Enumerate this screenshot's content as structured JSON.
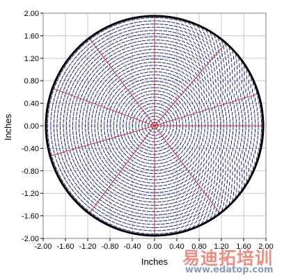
{
  "chart_data": {
    "type": "scatter",
    "title": "",
    "xlabel": "Inches",
    "ylabel": "Inches",
    "xlim": [
      -2.0,
      2.0
    ],
    "ylim": [
      -2.0,
      2.0
    ],
    "x_ticks": [
      "-2.00",
      "-1.60",
      "-1.20",
      "-0.80",
      "-0.40",
      "0.00",
      "0.40",
      "0.80",
      "1.20",
      "1.60",
      "2.00"
    ],
    "y_ticks": [
      "2.00",
      "1.60",
      "1.20",
      "0.80",
      "0.40",
      "0.00",
      "-0.40",
      "-0.80",
      "-1.20",
      "-1.60",
      "-2.00"
    ],
    "grid": true,
    "boundary_circle": {
      "center": [
        0.0,
        0.0
      ],
      "radius": 1.95,
      "color": "#000000"
    },
    "radial_lines": {
      "color": "#cc3333",
      "angles_deg": [
        0,
        17,
        49,
        90,
        127,
        160,
        196,
        233,
        270,
        307
      ],
      "length": 1.95
    },
    "vector_field": {
      "color": "#1a237e",
      "description_values": {
        "center": [
          0.0,
          0.0
        ],
        "pattern": "tangential dashes, horizontal alignment increasing toward +x"
      }
    }
  },
  "watermark": {
    "chinese": "易迪拓培训",
    "url": "www.edatop.com"
  },
  "colors": {
    "grid": "#c8c8c8",
    "vectors": "#1a237e",
    "radial": "#cc3333",
    "circle": "#000000"
  }
}
